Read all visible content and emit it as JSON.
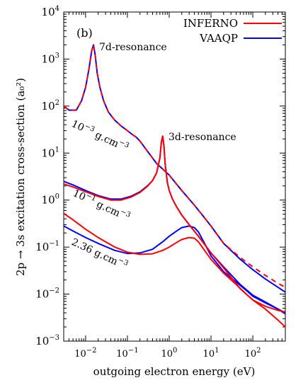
{
  "chart_data": {
    "type": "line",
    "panel_label": "(b)",
    "xlabel": "outgoing electron energy (eV)",
    "ylabel": "2p → 3s excitation cross-section (a₀²)",
    "xscale": "log",
    "yscale": "log",
    "xlim": [
      0.003,
      600
    ],
    "ylim": [
      0.001,
      10000
    ],
    "x_ticks": [
      {
        "value": 0.01,
        "base": "10",
        "exp": "−2"
      },
      {
        "value": 0.1,
        "base": "10",
        "exp": "−1"
      },
      {
        "value": 1,
        "base": "10",
        "exp": "0"
      },
      {
        "value": 10,
        "base": "10",
        "exp": "1"
      },
      {
        "value": 100,
        "base": "10",
        "exp": "2"
      }
    ],
    "y_ticks": [
      {
        "value": 0.001,
        "base": "10",
        "exp": "−3"
      },
      {
        "value": 0.01,
        "base": "10",
        "exp": "−2"
      },
      {
        "value": 0.1,
        "base": "10",
        "exp": "−1"
      },
      {
        "value": 1,
        "base": "10",
        "exp": "0"
      },
      {
        "value": 10,
        "base": "10",
        "exp": "1"
      },
      {
        "value": 100,
        "base": "10",
        "exp": "2"
      },
      {
        "value": 1000,
        "base": "10",
        "exp": "3"
      },
      {
        "value": 10000,
        "base": "10",
        "exp": "4"
      }
    ],
    "legend_position": "top-right",
    "legend": [
      {
        "name": "INFERNO",
        "color": "#ff0000"
      },
      {
        "name": "VAAQP",
        "color": "#0000ff"
      }
    ],
    "annotations": [
      {
        "id": "res7d",
        "text": "7d-resonance"
      },
      {
        "id": "res3d",
        "text": "3d-resonance"
      },
      {
        "id": "dens1",
        "base": "10",
        "exp": "−3",
        "unit": " g.cm",
        "unit_exp": "−3"
      },
      {
        "id": "dens2",
        "base": "10",
        "exp": "−1",
        "unit": " g.cm",
        "unit_exp": "−3"
      },
      {
        "id": "dens3",
        "base": "2.36",
        "exp": "",
        "unit": " g.cm",
        "unit_exp": "−3"
      }
    ],
    "series": [
      {
        "name": "VAAQP",
        "density": "1e-3",
        "color": "#0000ff",
        "dashed": false,
        "x": [
          0.003,
          0.004,
          0.006,
          0.008,
          0.01,
          0.012,
          0.014,
          0.0155,
          0.017,
          0.019,
          0.022,
          0.027,
          0.035,
          0.05,
          0.07,
          0.1,
          0.13,
          0.16,
          0.2,
          0.3,
          0.5,
          1,
          2,
          4,
          6,
          10,
          20,
          50,
          100,
          200,
          400,
          600
        ],
        "y": [
          100,
          82,
          82,
          130,
          250,
          600,
          1500,
          2000,
          1200,
          500,
          250,
          130,
          75,
          50,
          38,
          30,
          25,
          22,
          18,
          11,
          6,
          3.4,
          1.6,
          0.78,
          0.5,
          0.28,
          0.12,
          0.055,
          0.033,
          0.021,
          0.014,
          0.011
        ]
      },
      {
        "name": "INFERNO",
        "density": "1e-3",
        "color": "#ff0000",
        "dashed": true,
        "x": [
          0.003,
          0.004,
          0.006,
          0.008,
          0.01,
          0.012,
          0.014,
          0.0155,
          0.017,
          0.019,
          0.022,
          0.027,
          0.035,
          0.05,
          0.07,
          0.1,
          0.13,
          0.16,
          0.2,
          0.3,
          0.5,
          1,
          2,
          4,
          6,
          10,
          20,
          50,
          100,
          200,
          400,
          600
        ],
        "y": [
          100,
          82,
          82,
          130,
          250,
          600,
          1500,
          2000,
          1200,
          500,
          250,
          130,
          75,
          50,
          38,
          30,
          25,
          22,
          18,
          11,
          6,
          3.4,
          1.6,
          0.78,
          0.5,
          0.28,
          0.12,
          0.06,
          0.038,
          0.025,
          0.017,
          0.014
        ]
      },
      {
        "name": "VAAQP",
        "density": "1e-1",
        "color": "#0000ff",
        "dashed": false,
        "x": [
          0.003,
          0.005,
          0.01,
          0.02,
          0.04,
          0.07,
          0.12,
          0.2,
          0.3,
          0.4,
          0.5,
          0.6,
          0.65,
          0.7,
          0.75,
          0.8,
          0.9,
          1.0,
          1.2,
          1.5,
          2,
          3,
          5,
          10,
          20,
          50,
          100,
          200,
          400,
          600
        ],
        "y": [
          2.5,
          2.1,
          1.6,
          1.25,
          1.05,
          1.05,
          1.2,
          1.5,
          2.0,
          2.6,
          3.8,
          8.0,
          17,
          23,
          14,
          6.0,
          2.4,
          1.6,
          1.05,
          0.72,
          0.48,
          0.3,
          0.17,
          0.075,
          0.038,
          0.016,
          0.0095,
          0.0068,
          0.0048,
          0.004
        ]
      },
      {
        "name": "INFERNO",
        "density": "1e-1",
        "color": "#ff0000",
        "dashed": false,
        "x": [
          0.003,
          0.005,
          0.01,
          0.02,
          0.04,
          0.07,
          0.12,
          0.2,
          0.3,
          0.4,
          0.5,
          0.6,
          0.65,
          0.7,
          0.75,
          0.8,
          0.9,
          1.0,
          1.2,
          1.5,
          2,
          3,
          5,
          10,
          20,
          50,
          100,
          200,
          400,
          600
        ],
        "y": [
          2.2,
          1.9,
          1.5,
          1.2,
          1.0,
          1.0,
          1.15,
          1.45,
          1.95,
          2.6,
          3.8,
          8.0,
          17,
          23,
          14,
          6.0,
          2.4,
          1.6,
          1.05,
          0.72,
          0.48,
          0.3,
          0.17,
          0.075,
          0.036,
          0.013,
          0.0075,
          0.0055,
          0.0045,
          0.0042
        ]
      },
      {
        "name": "VAAQP",
        "density": "2.36",
        "color": "#0000ff",
        "dashed": false,
        "x": [
          0.003,
          0.005,
          0.01,
          0.02,
          0.05,
          0.1,
          0.2,
          0.4,
          0.7,
          1.0,
          1.5,
          2,
          3,
          4,
          5,
          7,
          10,
          20,
          40,
          70,
          100,
          200,
          400,
          600
        ],
        "y": [
          0.28,
          0.22,
          0.16,
          0.12,
          0.085,
          0.073,
          0.075,
          0.09,
          0.13,
          0.17,
          0.22,
          0.26,
          0.28,
          0.26,
          0.21,
          0.12,
          0.065,
          0.03,
          0.018,
          0.012,
          0.009,
          0.0065,
          0.0048,
          0.0038
        ]
      },
      {
        "name": "INFERNO",
        "density": "2.36",
        "color": "#ff0000",
        "dashed": false,
        "x": [
          0.003,
          0.005,
          0.01,
          0.02,
          0.05,
          0.1,
          0.2,
          0.4,
          0.7,
          1.0,
          1.5,
          2,
          3,
          4,
          5,
          7,
          10,
          20,
          40,
          70,
          100,
          200,
          400,
          600
        ],
        "y": [
          0.52,
          0.38,
          0.24,
          0.16,
          0.1,
          0.078,
          0.07,
          0.072,
          0.085,
          0.1,
          0.125,
          0.145,
          0.16,
          0.155,
          0.13,
          0.085,
          0.055,
          0.028,
          0.016,
          0.01,
          0.0075,
          0.0048,
          0.0028,
          0.002
        ]
      }
    ]
  }
}
